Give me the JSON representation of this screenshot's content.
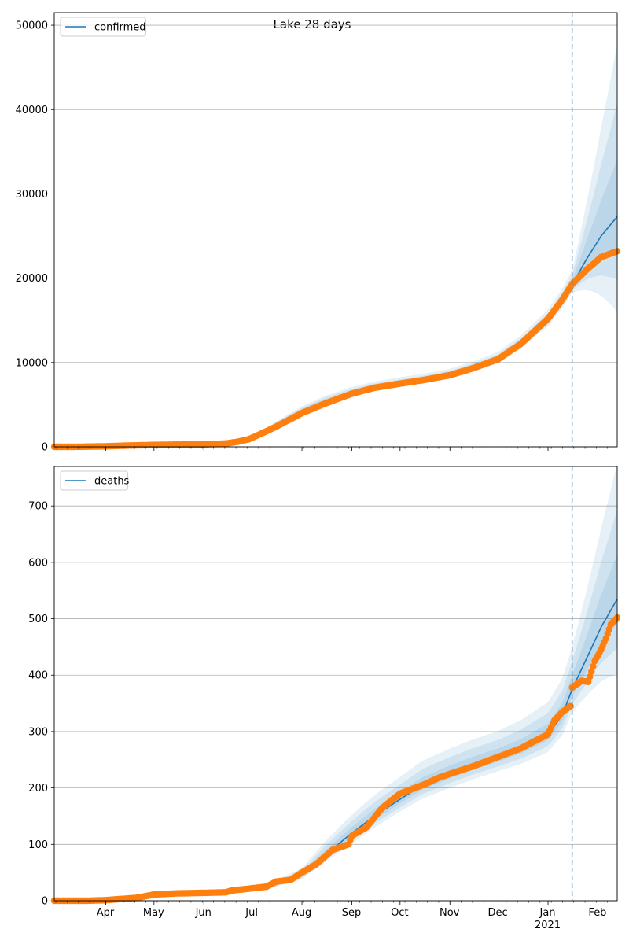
{
  "figure": {
    "title": "Lake 28 days"
  },
  "colors": {
    "model_line": "#1f77b4",
    "observed": "#ff7f0e",
    "band": "#1f77b4",
    "vline": "#1f77b4",
    "grid": "#b0b0b0"
  },
  "x_axis": {
    "range_start": "2020-02-29",
    "range_end": "2021-02-13",
    "month_ticks": [
      {
        "date": "2020-04-01",
        "label": "Apr",
        "sublabel": ""
      },
      {
        "date": "2020-05-01",
        "label": "May",
        "sublabel": ""
      },
      {
        "date": "2020-06-01",
        "label": "Jun",
        "sublabel": ""
      },
      {
        "date": "2020-07-01",
        "label": "Jul",
        "sublabel": ""
      },
      {
        "date": "2020-08-01",
        "label": "Aug",
        "sublabel": ""
      },
      {
        "date": "2020-09-01",
        "label": "Sep",
        "sublabel": ""
      },
      {
        "date": "2020-10-01",
        "label": "Oct",
        "sublabel": ""
      },
      {
        "date": "2020-11-01",
        "label": "Nov",
        "sublabel": ""
      },
      {
        "date": "2020-12-01",
        "label": "Dec",
        "sublabel": ""
      },
      {
        "date": "2021-01-01",
        "label": "Jan",
        "sublabel": "2021"
      },
      {
        "date": "2021-02-01",
        "label": "Feb",
        "sublabel": ""
      }
    ],
    "forecast_start": "2021-01-16"
  },
  "chart_data": [
    {
      "type": "line",
      "panel": "confirmed",
      "ylim": [
        0,
        51500
      ],
      "yticks": [
        0,
        10000,
        20000,
        30000,
        40000,
        50000
      ],
      "grid": true,
      "legend": {
        "placement": "top-left",
        "entries": [
          "confirmed"
        ]
      },
      "model": [
        [
          "2020-02-29",
          0
        ],
        [
          "2020-06-01",
          100
        ],
        [
          "2020-06-15",
          300
        ],
        [
          "2020-06-29",
          900
        ],
        [
          "2020-07-15",
          2600
        ],
        [
          "2020-08-01",
          4300
        ],
        [
          "2020-08-15",
          5400
        ],
        [
          "2020-09-01",
          6400
        ],
        [
          "2020-09-15",
          7000
        ],
        [
          "2020-10-01",
          7500
        ],
        [
          "2020-10-15",
          7900
        ],
        [
          "2020-11-01",
          8500
        ],
        [
          "2020-11-15",
          9300
        ],
        [
          "2020-12-01",
          10400
        ],
        [
          "2020-12-15",
          12200
        ],
        [
          "2021-01-01",
          15000
        ],
        [
          "2021-01-10",
          17300
        ],
        [
          "2021-01-16",
          19200
        ],
        [
          "2021-01-25",
          22300
        ],
        [
          "2021-02-03",
          25000
        ],
        [
          "2021-02-13",
          27300
        ]
      ],
      "band_half_widths": [
        [
          "2020-02-29",
          0
        ],
        [
          "2020-06-01",
          0.05
        ],
        [
          "2020-07-15",
          0.12
        ],
        [
          "2020-09-01",
          0.11
        ],
        [
          "2020-11-01",
          0.09
        ],
        [
          "2020-12-15",
          0.08
        ],
        [
          "2021-01-16",
          0.09
        ],
        [
          "2021-02-13",
          0.75
        ]
      ],
      "observed": [
        [
          "2020-02-29",
          0
        ],
        [
          "2020-03-15",
          5
        ],
        [
          "2020-04-01",
          60
        ],
        [
          "2020-04-15",
          150
        ],
        [
          "2020-05-01",
          220
        ],
        [
          "2020-05-15",
          260
        ],
        [
          "2020-06-01",
          290
        ],
        [
          "2020-06-08",
          330
        ],
        [
          "2020-06-15",
          400
        ],
        [
          "2020-06-22",
          600
        ],
        [
          "2020-06-29",
          900
        ],
        [
          "2020-07-06",
          1500
        ],
        [
          "2020-07-15",
          2300
        ],
        [
          "2020-07-22",
          3000
        ],
        [
          "2020-08-01",
          4000
        ],
        [
          "2020-08-15",
          5100
        ],
        [
          "2020-09-01",
          6300
        ],
        [
          "2020-09-15",
          7000
        ],
        [
          "2020-10-01",
          7500
        ],
        [
          "2020-10-15",
          7900
        ],
        [
          "2020-11-01",
          8500
        ],
        [
          "2020-11-15",
          9300
        ],
        [
          "2020-12-01",
          10400
        ],
        [
          "2020-12-15",
          12200
        ],
        [
          "2021-01-01",
          15200
        ],
        [
          "2021-01-10",
          17500
        ],
        [
          "2021-01-16",
          19300
        ],
        [
          "2021-01-25",
          21000
        ],
        [
          "2021-02-03",
          22500
        ],
        [
          "2021-02-13",
          23200
        ]
      ]
    },
    {
      "type": "line",
      "panel": "deaths",
      "ylim": [
        0,
        770
      ],
      "yticks": [
        0,
        100,
        200,
        300,
        400,
        500,
        600,
        700
      ],
      "grid": true,
      "legend": {
        "placement": "top-left",
        "entries": [
          "deaths"
        ]
      },
      "model": [
        [
          "2020-02-29",
          0
        ],
        [
          "2020-04-01",
          2
        ],
        [
          "2020-05-01",
          10
        ],
        [
          "2020-06-01",
          14
        ],
        [
          "2020-06-15",
          16
        ],
        [
          "2020-07-01",
          20
        ],
        [
          "2020-07-15",
          28
        ],
        [
          "2020-08-01",
          45
        ],
        [
          "2020-08-15",
          80
        ],
        [
          "2020-09-01",
          120
        ],
        [
          "2020-09-15",
          150
        ],
        [
          "2020-10-01",
          180
        ],
        [
          "2020-10-15",
          205
        ],
        [
          "2020-11-01",
          225
        ],
        [
          "2020-11-15",
          240
        ],
        [
          "2020-12-01",
          255
        ],
        [
          "2020-12-15",
          270
        ],
        [
          "2021-01-01",
          295
        ],
        [
          "2021-01-10",
          330
        ],
        [
          "2021-01-16",
          375
        ],
        [
          "2021-01-25",
          430
        ],
        [
          "2021-02-03",
          485
        ],
        [
          "2021-02-13",
          535
        ]
      ],
      "band_half_widths": [
        [
          "2020-02-29",
          0
        ],
        [
          "2020-05-01",
          0.15
        ],
        [
          "2020-07-01",
          0.25
        ],
        [
          "2020-08-15",
          0.3
        ],
        [
          "2020-10-01",
          0.22
        ],
        [
          "2020-12-01",
          0.18
        ],
        [
          "2021-01-16",
          0.2
        ],
        [
          "2021-02-13",
          0.45
        ]
      ],
      "observed": [
        [
          "2020-02-29",
          0
        ],
        [
          "2020-03-20",
          0
        ],
        [
          "2020-04-01",
          1
        ],
        [
          "2020-04-10",
          3
        ],
        [
          "2020-04-20",
          5
        ],
        [
          "2020-05-01",
          11
        ],
        [
          "2020-05-15",
          13
        ],
        [
          "2020-06-01",
          14
        ],
        [
          "2020-06-15",
          15
        ],
        [
          "2020-06-18",
          18
        ],
        [
          "2020-07-01",
          22
        ],
        [
          "2020-07-10",
          25
        ],
        [
          "2020-07-16",
          34
        ],
        [
          "2020-07-25",
          37
        ],
        [
          "2020-08-01",
          50
        ],
        [
          "2020-08-10",
          65
        ],
        [
          "2020-08-20",
          90
        ],
        [
          "2020-08-30",
          100
        ],
        [
          "2020-09-01",
          115
        ],
        [
          "2020-09-10",
          130
        ],
        [
          "2020-09-20",
          165
        ],
        [
          "2020-10-01",
          190
        ],
        [
          "2020-10-15",
          205
        ],
        [
          "2020-10-25",
          218
        ],
        [
          "2020-11-01",
          225
        ],
        [
          "2020-11-15",
          238
        ],
        [
          "2020-12-01",
          255
        ],
        [
          "2020-12-15",
          270
        ],
        [
          "2020-12-25",
          285
        ],
        [
          "2021-01-01",
          295
        ],
        [
          "2021-01-05",
          320
        ],
        [
          "2021-01-10",
          335
        ],
        [
          "2021-01-15",
          345
        ],
        [
          "2021-01-16",
          378
        ],
        [
          "2021-01-22",
          390
        ],
        [
          "2021-01-26",
          388
        ],
        [
          "2021-01-30",
          425
        ],
        [
          "2021-02-03",
          445
        ],
        [
          "2021-02-06",
          465
        ],
        [
          "2021-02-09",
          490
        ],
        [
          "2021-02-13",
          502
        ]
      ]
    }
  ]
}
